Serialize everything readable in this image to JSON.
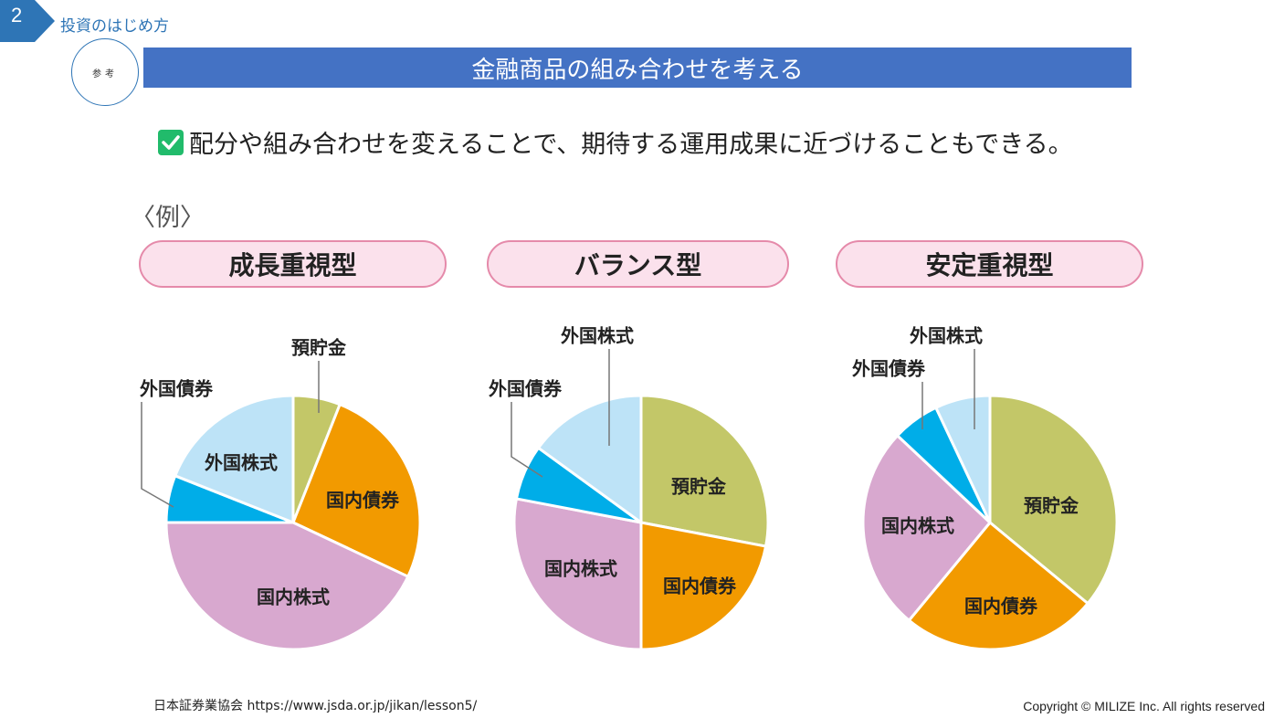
{
  "header": {
    "chapter_number": "2",
    "chapter_title": "投資のはじめ方",
    "reference_badge": "参考",
    "slide_title": "金融商品の組み合わせを考える",
    "lead": "配分や組み合わせを変えることで、期待する運用成果に近づけることもできる。",
    "example_label": "〈例〉"
  },
  "colors": {
    "預貯金": "#c3c768",
    "国内債券": "#f29a00",
    "国内株式": "#d8a8cf",
    "外国債券": "#00ade8",
    "外国株式": "#bde3f7",
    "title_bar": "#4472c4",
    "accent": "#2e75b6",
    "pill_fill": "#fbe1ec",
    "pill_border": "#e58aaa",
    "check": "#21bb6b"
  },
  "chart_data": [
    {
      "type": "pie",
      "title": "成長重視型",
      "slices": [
        {
          "label": "預貯金",
          "value": 6
        },
        {
          "label": "国内債券",
          "value": 26
        },
        {
          "label": "国内株式",
          "value": 43
        },
        {
          "label": "外国債券",
          "value": 6
        },
        {
          "label": "外国株式",
          "value": 19
        }
      ]
    },
    {
      "type": "pie",
      "title": "バランス型",
      "slices": [
        {
          "label": "預貯金",
          "value": 28
        },
        {
          "label": "国内債券",
          "value": 22
        },
        {
          "label": "国内株式",
          "value": 28
        },
        {
          "label": "外国債券",
          "value": 7
        },
        {
          "label": "外国株式",
          "value": 15
        }
      ]
    },
    {
      "type": "pie",
      "title": "安定重視型",
      "slices": [
        {
          "label": "預貯金",
          "value": 36
        },
        {
          "label": "国内債券",
          "value": 25
        },
        {
          "label": "国内株式",
          "value": 26
        },
        {
          "label": "外国債券",
          "value": 6
        },
        {
          "label": "外国株式",
          "value": 7
        }
      ]
    }
  ],
  "footer": {
    "source": "日本証券業協会 https://www.jsda.or.jp/jikan/lesson5/",
    "copyright": "Copyright © MILIZE Inc. All rights reserved"
  }
}
